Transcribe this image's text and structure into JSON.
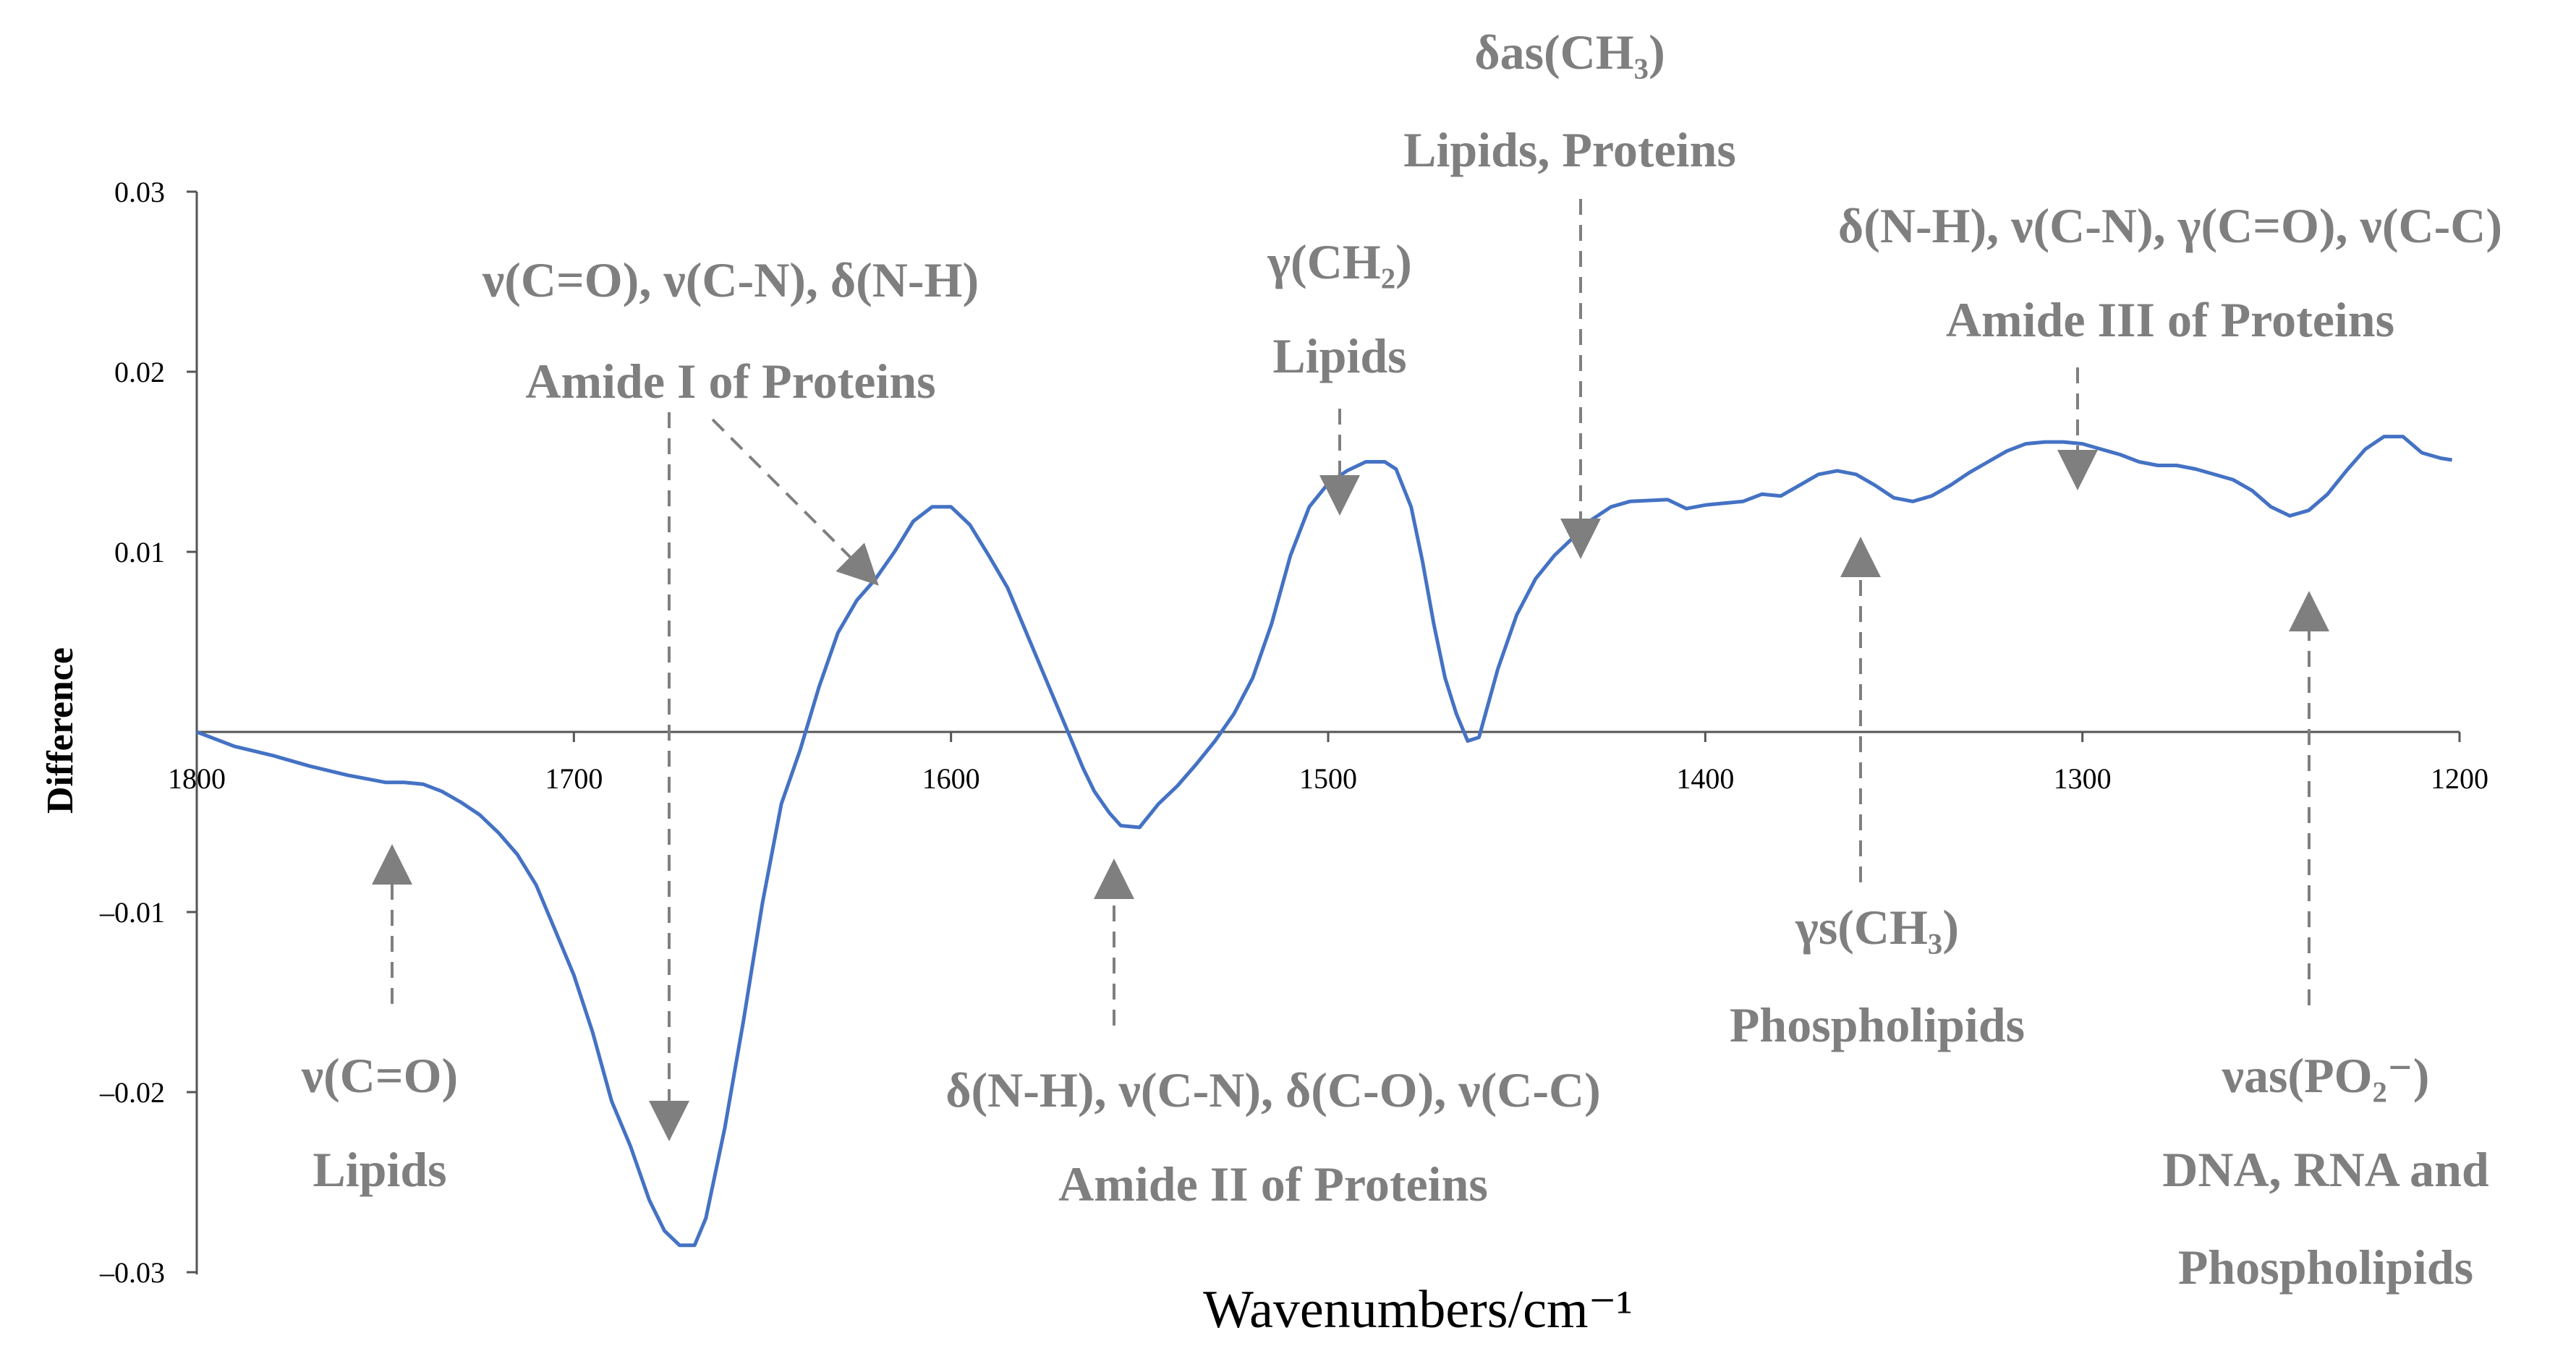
{
  "chart_data": {
    "type": "line",
    "xlabel": "Wavenumbers/cm⁻¹",
    "ylabel": "Difference",
    "xlim": [
      1800,
      1200
    ],
    "ylim": [
      -0.03,
      0.03
    ],
    "x_reversed": true,
    "grid": false,
    "x_ticks": [
      "1800",
      "1700",
      "1600",
      "1500",
      "1400",
      "1300",
      "1200"
    ],
    "y_ticks": [
      "0.03",
      "0.02",
      "0.01",
      "–0.01",
      "–0.02",
      "–0.03"
    ],
    "series_color": "#4472c4",
    "annotation_color": "#7f7f7f",
    "series": [
      {
        "x": [
          1800,
          1790,
          1780,
          1770,
          1760,
          1750,
          1745,
          1740,
          1735,
          1730,
          1725,
          1720,
          1715,
          1710,
          1705,
          1700,
          1695,
          1690,
          1685,
          1680,
          1676,
          1672,
          1668,
          1665,
          1660,
          1655,
          1650,
          1645,
          1640,
          1635,
          1630,
          1625,
          1620,
          1615,
          1610,
          1605,
          1600,
          1595,
          1590,
          1585,
          1580,
          1575,
          1570,
          1565,
          1562,
          1558,
          1555,
          1550,
          1545,
          1540,
          1535,
          1530,
          1525,
          1520,
          1515,
          1510,
          1505,
          1500,
          1495,
          1490,
          1485,
          1482,
          1478,
          1475,
          1472,
          1469,
          1466,
          1463,
          1460,
          1455,
          1450,
          1445,
          1440,
          1435,
          1430,
          1425,
          1420,
          1410,
          1405,
          1400,
          1395,
          1390,
          1385,
          1380,
          1375,
          1370,
          1365,
          1360,
          1355,
          1350,
          1345,
          1340,
          1335,
          1330,
          1325,
          1320,
          1315,
          1310,
          1305,
          1300,
          1295,
          1290,
          1285,
          1280,
          1275,
          1270,
          1265,
          1260,
          1255,
          1250,
          1245,
          1240,
          1235,
          1230,
          1225,
          1220,
          1215,
          1210,
          1205,
          1202
        ],
        "y": [
          0.0,
          -0.0008,
          -0.0013,
          -0.0019,
          -0.0024,
          -0.0028,
          -0.0028,
          -0.0029,
          -0.0033,
          -0.0039,
          -0.0046,
          -0.0056,
          -0.0068,
          -0.0085,
          -0.011,
          -0.0135,
          -0.0167,
          -0.0205,
          -0.023,
          -0.026,
          -0.0277,
          -0.0285,
          -0.0285,
          -0.027,
          -0.022,
          -0.016,
          -0.0095,
          -0.004,
          -0.001,
          0.0025,
          0.0055,
          0.0073,
          0.0085,
          0.01,
          0.0117,
          0.0125,
          0.0125,
          0.0115,
          0.0098,
          0.008,
          0.0055,
          0.003,
          0.0005,
          -0.002,
          -0.0033,
          -0.0045,
          -0.0052,
          -0.0053,
          -0.004,
          -0.003,
          -0.0018,
          -0.0005,
          0.001,
          0.003,
          0.006,
          0.0098,
          0.0125,
          0.0138,
          0.0145,
          0.015,
          0.015,
          0.0146,
          0.0125,
          0.0095,
          0.006,
          0.003,
          0.001,
          -0.0005,
          -0.0003,
          0.0035,
          0.0065,
          0.0085,
          0.0098,
          0.0108,
          0.0118,
          0.0125,
          0.0128,
          0.0129,
          0.0124,
          0.0126,
          0.0127,
          0.0128,
          0.0132,
          0.0131,
          0.0137,
          0.0143,
          0.0145,
          0.0143,
          0.0137,
          0.013,
          0.0128,
          0.0131,
          0.0137,
          0.0144,
          0.015,
          0.0156,
          0.016,
          0.0161,
          0.0161,
          0.016,
          0.0157,
          0.0154,
          0.015,
          0.0148,
          0.0148,
          0.0146,
          0.0143,
          0.014,
          0.0134,
          0.0125,
          0.012,
          0.0123,
          0.0132,
          0.0145,
          0.0157,
          0.0164,
          0.0164,
          0.0155,
          0.0152,
          0.0151
        ]
      }
    ],
    "annotations": [
      {
        "lines": [
          "ν(C=O)",
          "Lipids"
        ],
        "x": 1750
      },
      {
        "lines": [
          "ν(C=O), ν(C-N), δ(N-H)",
          "Amide I of Proteins"
        ],
        "x": 1672
      },
      {
        "lines": [
          "δ(N-H), ν(C-N), δ(C-O), ν(C-C)",
          "Amide II of Proteins"
        ],
        "x": 1560
      },
      {
        "lines": [
          "γ(CH₂)",
          "Lipids"
        ],
        "x": 1495
      },
      {
        "lines": [
          "δas(CH₃)",
          "Lipids, Proteins"
        ],
        "x": 1432
      },
      {
        "lines": [
          "γs(CH₃)",
          "Phospholipids"
        ],
        "x": 1360
      },
      {
        "lines": [
          "δ(N-H), ν(C-N), γ(C=O), ν(C-C)",
          "Amide III of Proteins"
        ],
        "x": 1300
      },
      {
        "lines": [
          "νas(PO₂⁻)",
          "DNA, RNA and",
          "Phospholipids"
        ],
        "x": 1240
      }
    ]
  }
}
